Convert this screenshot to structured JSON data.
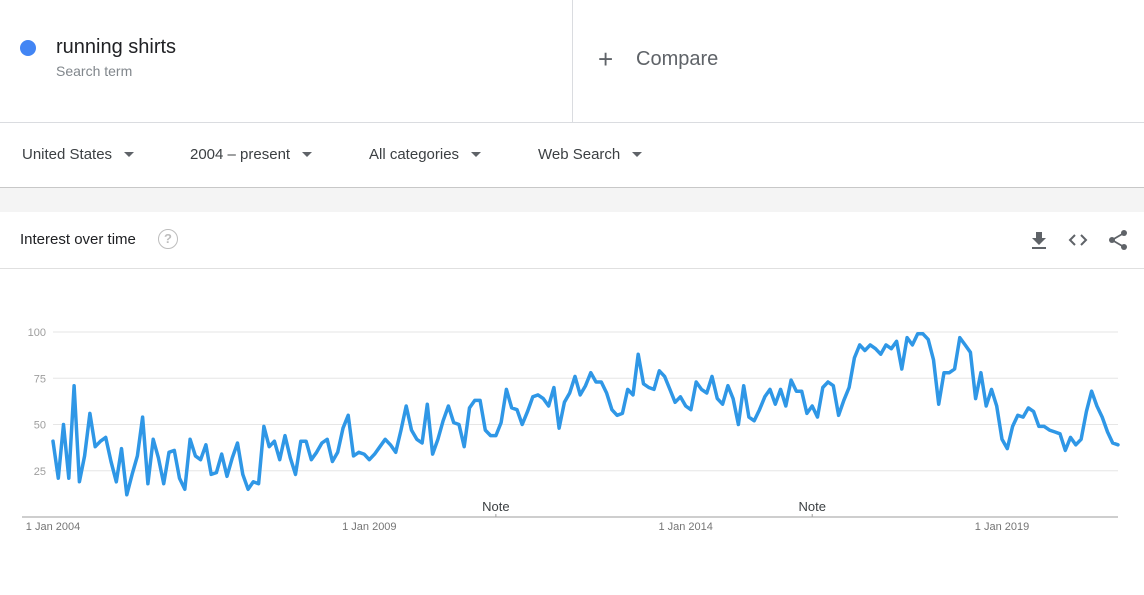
{
  "search_term": {
    "name": "running shirts",
    "subtitle": "Search term",
    "color": "#4285f4"
  },
  "compare": {
    "label": "Compare",
    "icon": "plus-icon"
  },
  "filters": [
    {
      "label": "United States"
    },
    {
      "label": "2004 – present"
    },
    {
      "label": "All categories"
    },
    {
      "label": "Web Search"
    }
  ],
  "card": {
    "title": "Interest over time",
    "actions": [
      "download-icon",
      "embed-code-icon",
      "share-icon"
    ]
  },
  "chart_data": {
    "type": "line",
    "title": "",
    "xlabel": "",
    "ylabel": "",
    "ylim": [
      0,
      100
    ],
    "yticks": [
      25,
      50,
      75,
      100
    ],
    "grid": true,
    "x_tick_labels": [
      "1 Jan 2004",
      "1 Jan 2009",
      "1 Jan 2014",
      "1 Jan 2019"
    ],
    "notes": [
      {
        "label": "Note",
        "date": "2011-01"
      },
      {
        "label": "Note",
        "date": "2016-01"
      }
    ],
    "series": [
      {
        "color": "#2f97e6",
        "x_start": "2004-01",
        "values": [
          41,
          21,
          50,
          21,
          71,
          19,
          33,
          56,
          38,
          41,
          43,
          30,
          19,
          37,
          12,
          23,
          33,
          54,
          18,
          42,
          32,
          18,
          35,
          36,
          21,
          15,
          42,
          33,
          31,
          39,
          23,
          24,
          34,
          22,
          32,
          40,
          23,
          15,
          19,
          18,
          49,
          38,
          41,
          31,
          44,
          32,
          23,
          41,
          41,
          31,
          35,
          40,
          42,
          30,
          35,
          48,
          55,
          33,
          35,
          34,
          31,
          34,
          38,
          42,
          39,
          35,
          47,
          60,
          47,
          42,
          40,
          61,
          34,
          42,
          52,
          60,
          51,
          50,
          38,
          59,
          63,
          63,
          47,
          44,
          44,
          51,
          69,
          59,
          58,
          50,
          57,
          65,
          66,
          64,
          60,
          70,
          48,
          62,
          67,
          76,
          66,
          71,
          78,
          73,
          73,
          67,
          58,
          55,
          56,
          69,
          66,
          88,
          72,
          70,
          69,
          79,
          76,
          69,
          62,
          65,
          60,
          58,
          73,
          69,
          67,
          76,
          64,
          61,
          71,
          64,
          50,
          71,
          54,
          52,
          58,
          65,
          69,
          61,
          69,
          60,
          74,
          68,
          68,
          56,
          60,
          54,
          70,
          73,
          71,
          55,
          63,
          70,
          86,
          93,
          90,
          93,
          91,
          88,
          93,
          91,
          95,
          80,
          97,
          93,
          99,
          99,
          96,
          85,
          61,
          78,
          78,
          80,
          97,
          93,
          89,
          64,
          78,
          60,
          69,
          60,
          42,
          37,
          49,
          55,
          54,
          59,
          57,
          49,
          49,
          47,
          46,
          45,
          36,
          43,
          39,
          42,
          57,
          68,
          60,
          54,
          46,
          40,
          39
        ]
      }
    ]
  }
}
